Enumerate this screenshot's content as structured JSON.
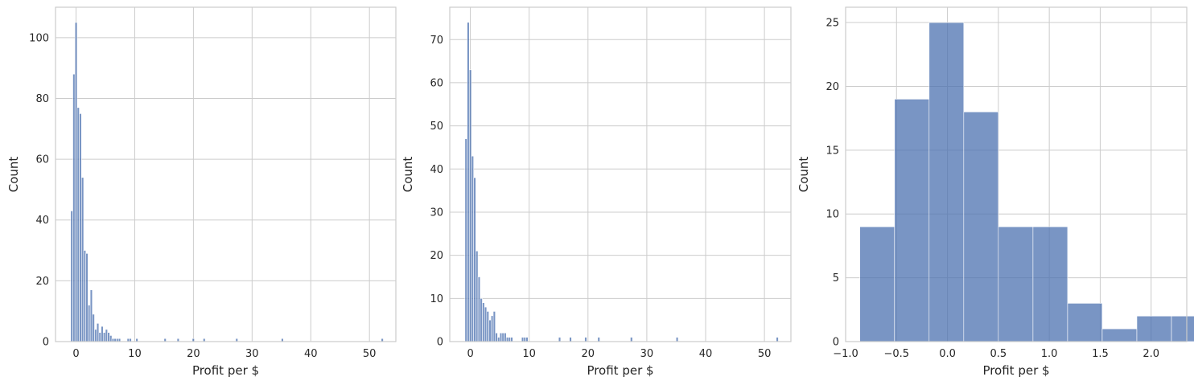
{
  "chart_data": [
    {
      "type": "bar",
      "xlabel": "Profit per $",
      "ylabel": "Count",
      "xlim": [
        -3.5,
        54.5
      ],
      "ylim": [
        0,
        110
      ],
      "xticks": [
        0,
        10,
        20,
        30,
        40,
        50
      ],
      "yticks": [
        0,
        20,
        40,
        60,
        80,
        100
      ],
      "grid": true,
      "bin_width": 0.37,
      "bins": [
        {
          "x0": -0.92,
          "count": 43
        },
        {
          "x0": -0.55,
          "count": 88
        },
        {
          "x0": -0.18,
          "count": 105
        },
        {
          "x0": 0.19,
          "count": 77
        },
        {
          "x0": 0.56,
          "count": 75
        },
        {
          "x0": 0.93,
          "count": 54
        },
        {
          "x0": 1.3,
          "count": 30
        },
        {
          "x0": 1.67,
          "count": 29
        },
        {
          "x0": 2.04,
          "count": 12
        },
        {
          "x0": 2.41,
          "count": 17
        },
        {
          "x0": 2.78,
          "count": 9
        },
        {
          "x0": 3.15,
          "count": 4
        },
        {
          "x0": 3.52,
          "count": 6
        },
        {
          "x0": 3.89,
          "count": 3
        },
        {
          "x0": 4.26,
          "count": 5
        },
        {
          "x0": 4.63,
          "count": 3
        },
        {
          "x0": 5.0,
          "count": 4
        },
        {
          "x0": 5.37,
          "count": 3
        },
        {
          "x0": 5.74,
          "count": 2
        },
        {
          "x0": 6.11,
          "count": 1
        },
        {
          "x0": 6.48,
          "count": 1
        },
        {
          "x0": 6.85,
          "count": 1
        },
        {
          "x0": 7.22,
          "count": 1
        },
        {
          "x0": 8.7,
          "count": 1
        },
        {
          "x0": 9.07,
          "count": 1
        },
        {
          "x0": 10.18,
          "count": 1
        },
        {
          "x0": 14.99,
          "count": 1
        },
        {
          "x0": 17.21,
          "count": 1
        },
        {
          "x0": 19.8,
          "count": 1
        },
        {
          "x0": 21.65,
          "count": 1
        },
        {
          "x0": 27.2,
          "count": 1
        },
        {
          "x0": 34.97,
          "count": 1
        },
        {
          "x0": 52.0,
          "count": 1
        }
      ]
    },
    {
      "type": "bar",
      "xlabel": "Profit per $",
      "ylabel": "Count",
      "xlim": [
        -3.5,
        54.5
      ],
      "ylim": [
        0,
        77.5
      ],
      "xticks": [
        0,
        10,
        20,
        30,
        40,
        50
      ],
      "yticks": [
        0,
        10,
        20,
        30,
        40,
        50,
        60,
        70
      ],
      "grid": true,
      "bin_width": 0.37,
      "bins": [
        {
          "x0": -0.92,
          "count": 47
        },
        {
          "x0": -0.55,
          "count": 74
        },
        {
          "x0": -0.18,
          "count": 63
        },
        {
          "x0": 0.19,
          "count": 43
        },
        {
          "x0": 0.56,
          "count": 38
        },
        {
          "x0": 0.93,
          "count": 21
        },
        {
          "x0": 1.3,
          "count": 15
        },
        {
          "x0": 1.67,
          "count": 10
        },
        {
          "x0": 2.04,
          "count": 9
        },
        {
          "x0": 2.41,
          "count": 8
        },
        {
          "x0": 2.78,
          "count": 7
        },
        {
          "x0": 3.15,
          "count": 5
        },
        {
          "x0": 3.52,
          "count": 6
        },
        {
          "x0": 3.89,
          "count": 7
        },
        {
          "x0": 4.26,
          "count": 2
        },
        {
          "x0": 4.63,
          "count": 1
        },
        {
          "x0": 5.0,
          "count": 2
        },
        {
          "x0": 5.37,
          "count": 2
        },
        {
          "x0": 5.74,
          "count": 2
        },
        {
          "x0": 6.11,
          "count": 1
        },
        {
          "x0": 6.48,
          "count": 1
        },
        {
          "x0": 6.85,
          "count": 1
        },
        {
          "x0": 8.7,
          "count": 1
        },
        {
          "x0": 9.07,
          "count": 1
        },
        {
          "x0": 9.44,
          "count": 1
        },
        {
          "x0": 14.99,
          "count": 1
        },
        {
          "x0": 16.84,
          "count": 1
        },
        {
          "x0": 19.43,
          "count": 1
        },
        {
          "x0": 21.65,
          "count": 1
        },
        {
          "x0": 27.2,
          "count": 1
        },
        {
          "x0": 34.97,
          "count": 1
        },
        {
          "x0": 52.0,
          "count": 1
        }
      ]
    },
    {
      "type": "bar",
      "xlabel": "Profit per $",
      "ylabel": "Count",
      "xlim": [
        -1.0,
        2.35
      ],
      "ylim": [
        0,
        26.2
      ],
      "xticks": [
        -1.0,
        -0.5,
        0.0,
        0.5,
        1.0,
        1.5,
        2.0
      ],
      "xtick_labels": [
        "−1.0",
        "−0.5",
        "0.0",
        "0.5",
        "1.0",
        "1.5",
        "2.0"
      ],
      "yticks": [
        0,
        5,
        10,
        15,
        20,
        25
      ],
      "grid": true,
      "bin_width": 0.34,
      "bins": [
        {
          "x0": -0.86,
          "count": 9
        },
        {
          "x0": -0.52,
          "count": 19
        },
        {
          "x0": -0.18,
          "count": 25
        },
        {
          "x0": 0.16,
          "count": 18
        },
        {
          "x0": 0.5,
          "count": 9
        },
        {
          "x0": 0.84,
          "count": 9
        },
        {
          "x0": 1.18,
          "count": 3
        },
        {
          "x0": 1.52,
          "count": 1
        },
        {
          "x0": 1.86,
          "count": 2
        },
        {
          "x0": 2.2,
          "count": 2
        }
      ]
    }
  ]
}
